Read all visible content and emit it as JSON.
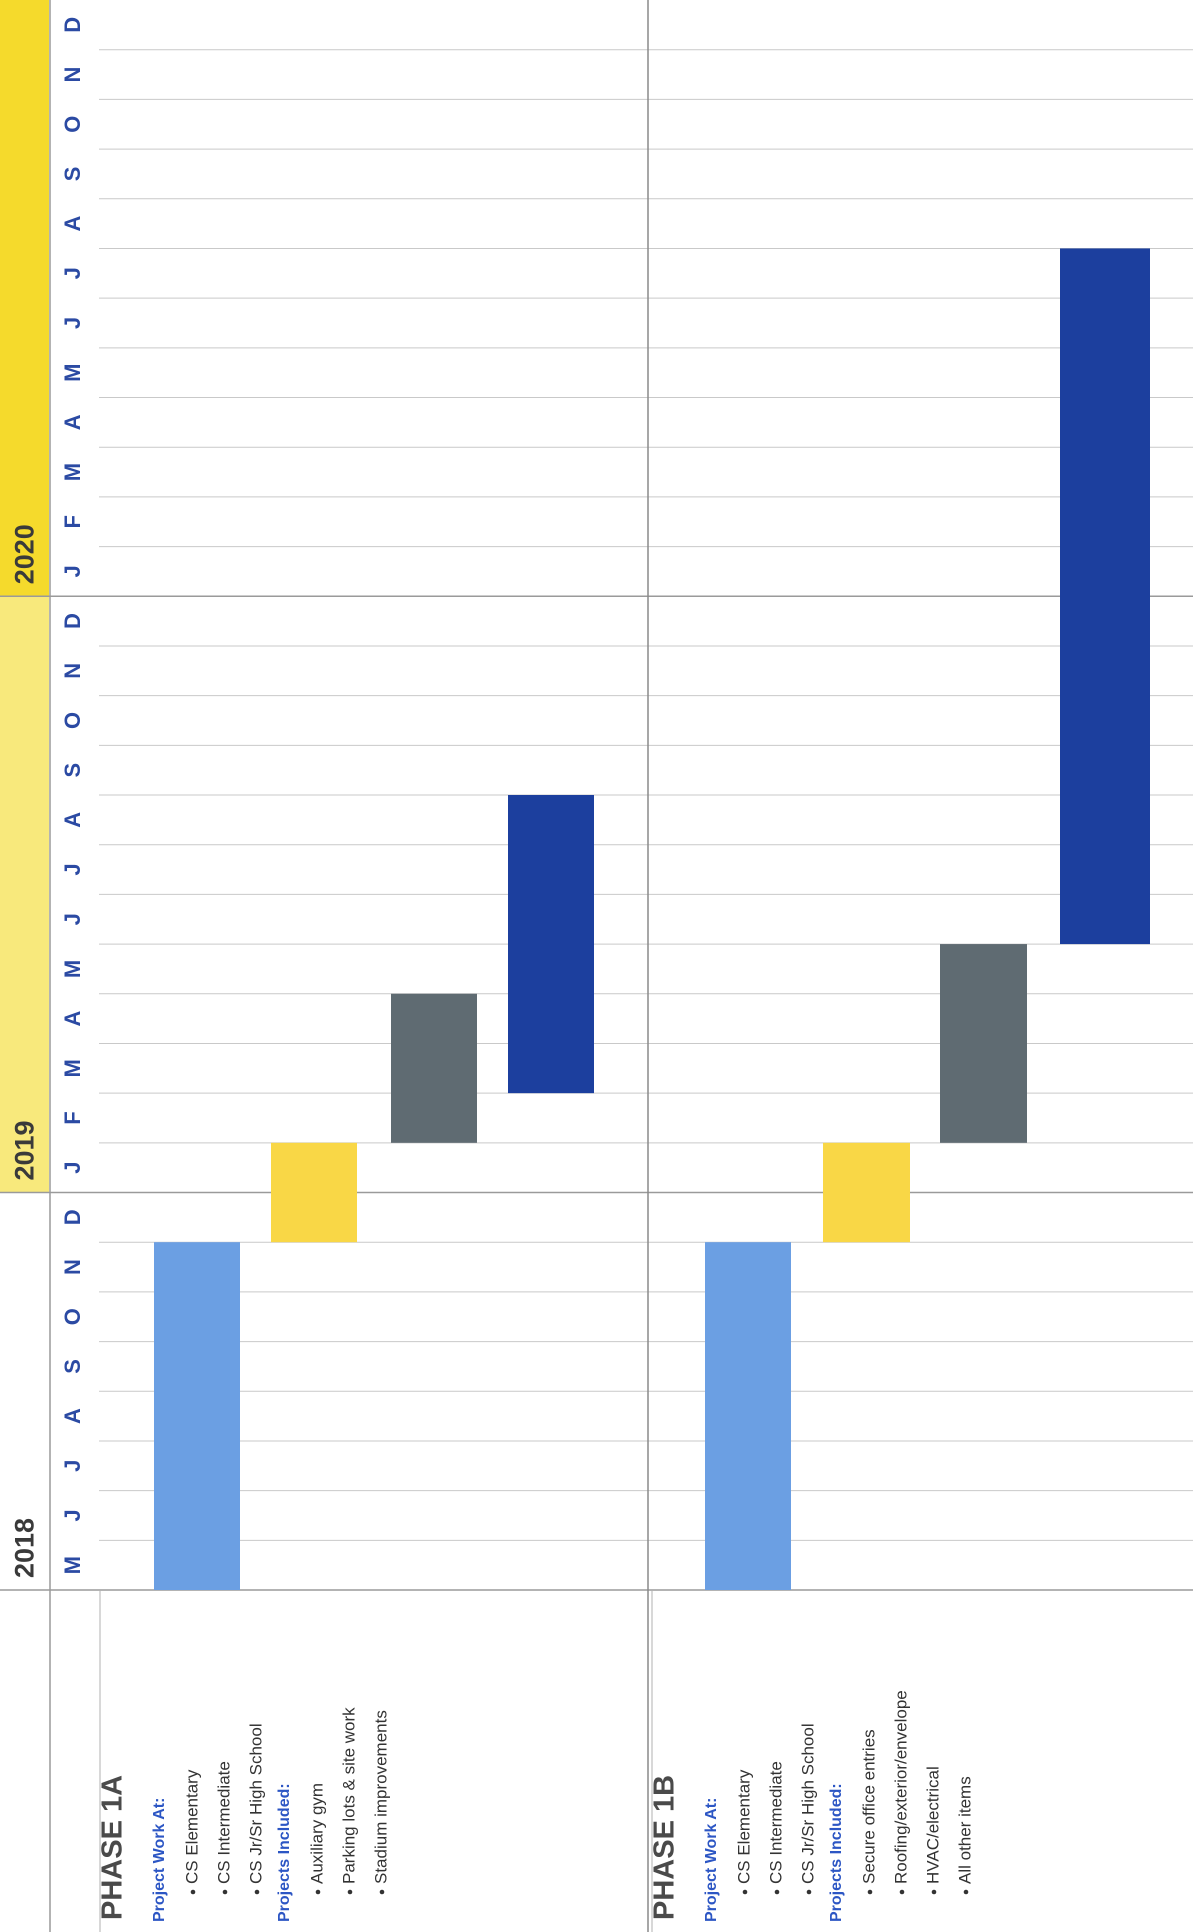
{
  "chart_data": {
    "type": "gantt",
    "years": [
      {
        "label": "2018",
        "months": [
          "M",
          "J",
          "J",
          "A",
          "S",
          "O",
          "N",
          "D"
        ]
      },
      {
        "label": "2019",
        "color": "#f8e97c",
        "months": [
          "J",
          "F",
          "M",
          "A",
          "M",
          "J",
          "J",
          "A",
          "S",
          "O",
          "N",
          "D"
        ]
      },
      {
        "label": "2020",
        "color": "#f5da2c",
        "months": [
          "J",
          "F",
          "M",
          "A",
          "M",
          "J",
          "J",
          "A",
          "S",
          "O",
          "N",
          "D"
        ]
      }
    ],
    "phases": [
      {
        "title": "PHASE 1A",
        "sections": [
          {
            "heading": "Project Work At:",
            "items": [
              "CS Elementary",
              "CS Intermediate",
              "CS Jr/Sr High School"
            ]
          },
          {
            "heading": "Projects Included:",
            "items": [
              "Auxiliary gym",
              "Parking lots & site work",
              "Stadium improvements"
            ]
          }
        ],
        "bars": [
          {
            "start": "2018-05",
            "end": "2018-11",
            "color": "#6b9fe3"
          },
          {
            "start": "2018-12",
            "end": "2019-01",
            "color": "#f9d746"
          },
          {
            "start": "2019-02",
            "end": "2019-04",
            "color": "#5f6b72"
          },
          {
            "start": "2019-03",
            "end": "2019-08",
            "color": "#1c3f9e"
          }
        ]
      },
      {
        "title": "PHASE 1B",
        "sections": [
          {
            "heading": "Project Work At:",
            "items": [
              "CS Elementary",
              "CS Intermediate",
              "CS Jr/Sr High School"
            ]
          },
          {
            "heading": "Projects Included:",
            "items": [
              "Secure office entries",
              "Roofing/exterior/envelope",
              "HVAC/electrical",
              "All other items"
            ]
          }
        ],
        "bars": [
          {
            "start": "2018-05",
            "end": "2018-11",
            "color": "#6b9fe3"
          },
          {
            "start": "2018-12",
            "end": "2019-01",
            "color": "#f9d746"
          },
          {
            "start": "2019-02",
            "end": "2019-05",
            "color": "#5f6b72"
          },
          {
            "start": "2019-06",
            "end": "2020-07",
            "color": "#1c3f9e"
          }
        ]
      }
    ]
  }
}
